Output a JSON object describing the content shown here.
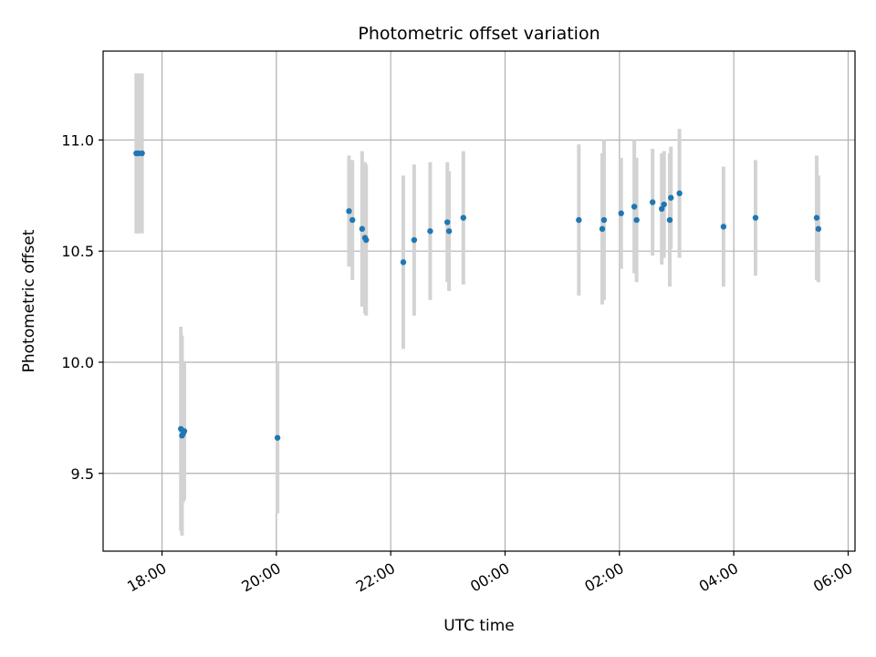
{
  "chart_data": {
    "type": "scatter",
    "title": "Photometric offset variation",
    "xlabel": "UTC time",
    "ylabel": "Photometric offset",
    "x_unit": "hours since 00:00 of first day",
    "xlim": [
      16.97,
      30.12
    ],
    "ylim": [
      9.15,
      11.4
    ],
    "grid": true,
    "x_ticks": [
      {
        "value": 18,
        "label": "18:00"
      },
      {
        "value": 20,
        "label": "20:00"
      },
      {
        "value": 22,
        "label": "22:00"
      },
      {
        "value": 24,
        "label": "00:00"
      },
      {
        "value": 26,
        "label": "02:00"
      },
      {
        "value": 28,
        "label": "04:00"
      },
      {
        "value": 30,
        "label": "06:00"
      }
    ],
    "y_ticks": [
      {
        "value": 9.5,
        "label": "9.5"
      },
      {
        "value": 10.0,
        "label": "10.0"
      },
      {
        "value": 10.5,
        "label": "10.5"
      },
      {
        "value": 11.0,
        "label": "11.0"
      }
    ],
    "point_color": "#1f77b4",
    "errorbar_color": "#d3d3d3",
    "points": [
      {
        "x": 17.55,
        "y": 10.94,
        "err": 0.36
      },
      {
        "x": 17.59,
        "y": 10.94,
        "err": 0.36
      },
      {
        "x": 17.65,
        "y": 10.94,
        "err": 0.36
      },
      {
        "x": 18.33,
        "y": 9.7,
        "err": 0.46
      },
      {
        "x": 18.35,
        "y": 9.67,
        "err": 0.45
      },
      {
        "x": 18.37,
        "y": 9.68,
        "err": 0.31
      },
      {
        "x": 18.39,
        "y": 9.69,
        "err": 0.31
      },
      {
        "x": 20.02,
        "y": 9.66,
        "err": 0.34
      },
      {
        "x": 21.27,
        "y": 10.68,
        "err": 0.25
      },
      {
        "x": 21.33,
        "y": 10.64,
        "err": 0.27
      },
      {
        "x": 21.5,
        "y": 10.6,
        "err": 0.35
      },
      {
        "x": 21.55,
        "y": 10.56,
        "err": 0.34
      },
      {
        "x": 21.57,
        "y": 10.55,
        "err": 0.34
      },
      {
        "x": 22.22,
        "y": 10.45,
        "err": 0.39
      },
      {
        "x": 22.41,
        "y": 10.55,
        "err": 0.34
      },
      {
        "x": 22.69,
        "y": 10.59,
        "err": 0.31
      },
      {
        "x": 22.99,
        "y": 10.63,
        "err": 0.27
      },
      {
        "x": 23.02,
        "y": 10.59,
        "err": 0.27
      },
      {
        "x": 23.27,
        "y": 10.65,
        "err": 0.3
      },
      {
        "x": 25.29,
        "y": 10.64,
        "err": 0.34
      },
      {
        "x": 25.7,
        "y": 10.6,
        "err": 0.34
      },
      {
        "x": 25.73,
        "y": 10.64,
        "err": 0.36
      },
      {
        "x": 26.03,
        "y": 10.67,
        "err": 0.25
      },
      {
        "x": 26.26,
        "y": 10.7,
        "err": 0.3
      },
      {
        "x": 26.3,
        "y": 10.64,
        "err": 0.28
      },
      {
        "x": 26.58,
        "y": 10.72,
        "err": 0.24
      },
      {
        "x": 26.74,
        "y": 10.69,
        "err": 0.25
      },
      {
        "x": 26.78,
        "y": 10.71,
        "err": 0.24
      },
      {
        "x": 26.88,
        "y": 10.64,
        "err": 0.3
      },
      {
        "x": 26.9,
        "y": 10.74,
        "err": 0.23
      },
      {
        "x": 27.05,
        "y": 10.76,
        "err": 0.29
      },
      {
        "x": 27.82,
        "y": 10.61,
        "err": 0.27
      },
      {
        "x": 28.38,
        "y": 10.65,
        "err": 0.26
      },
      {
        "x": 29.45,
        "y": 10.65,
        "err": 0.28
      },
      {
        "x": 29.48,
        "y": 10.6,
        "err": 0.24
      }
    ]
  }
}
